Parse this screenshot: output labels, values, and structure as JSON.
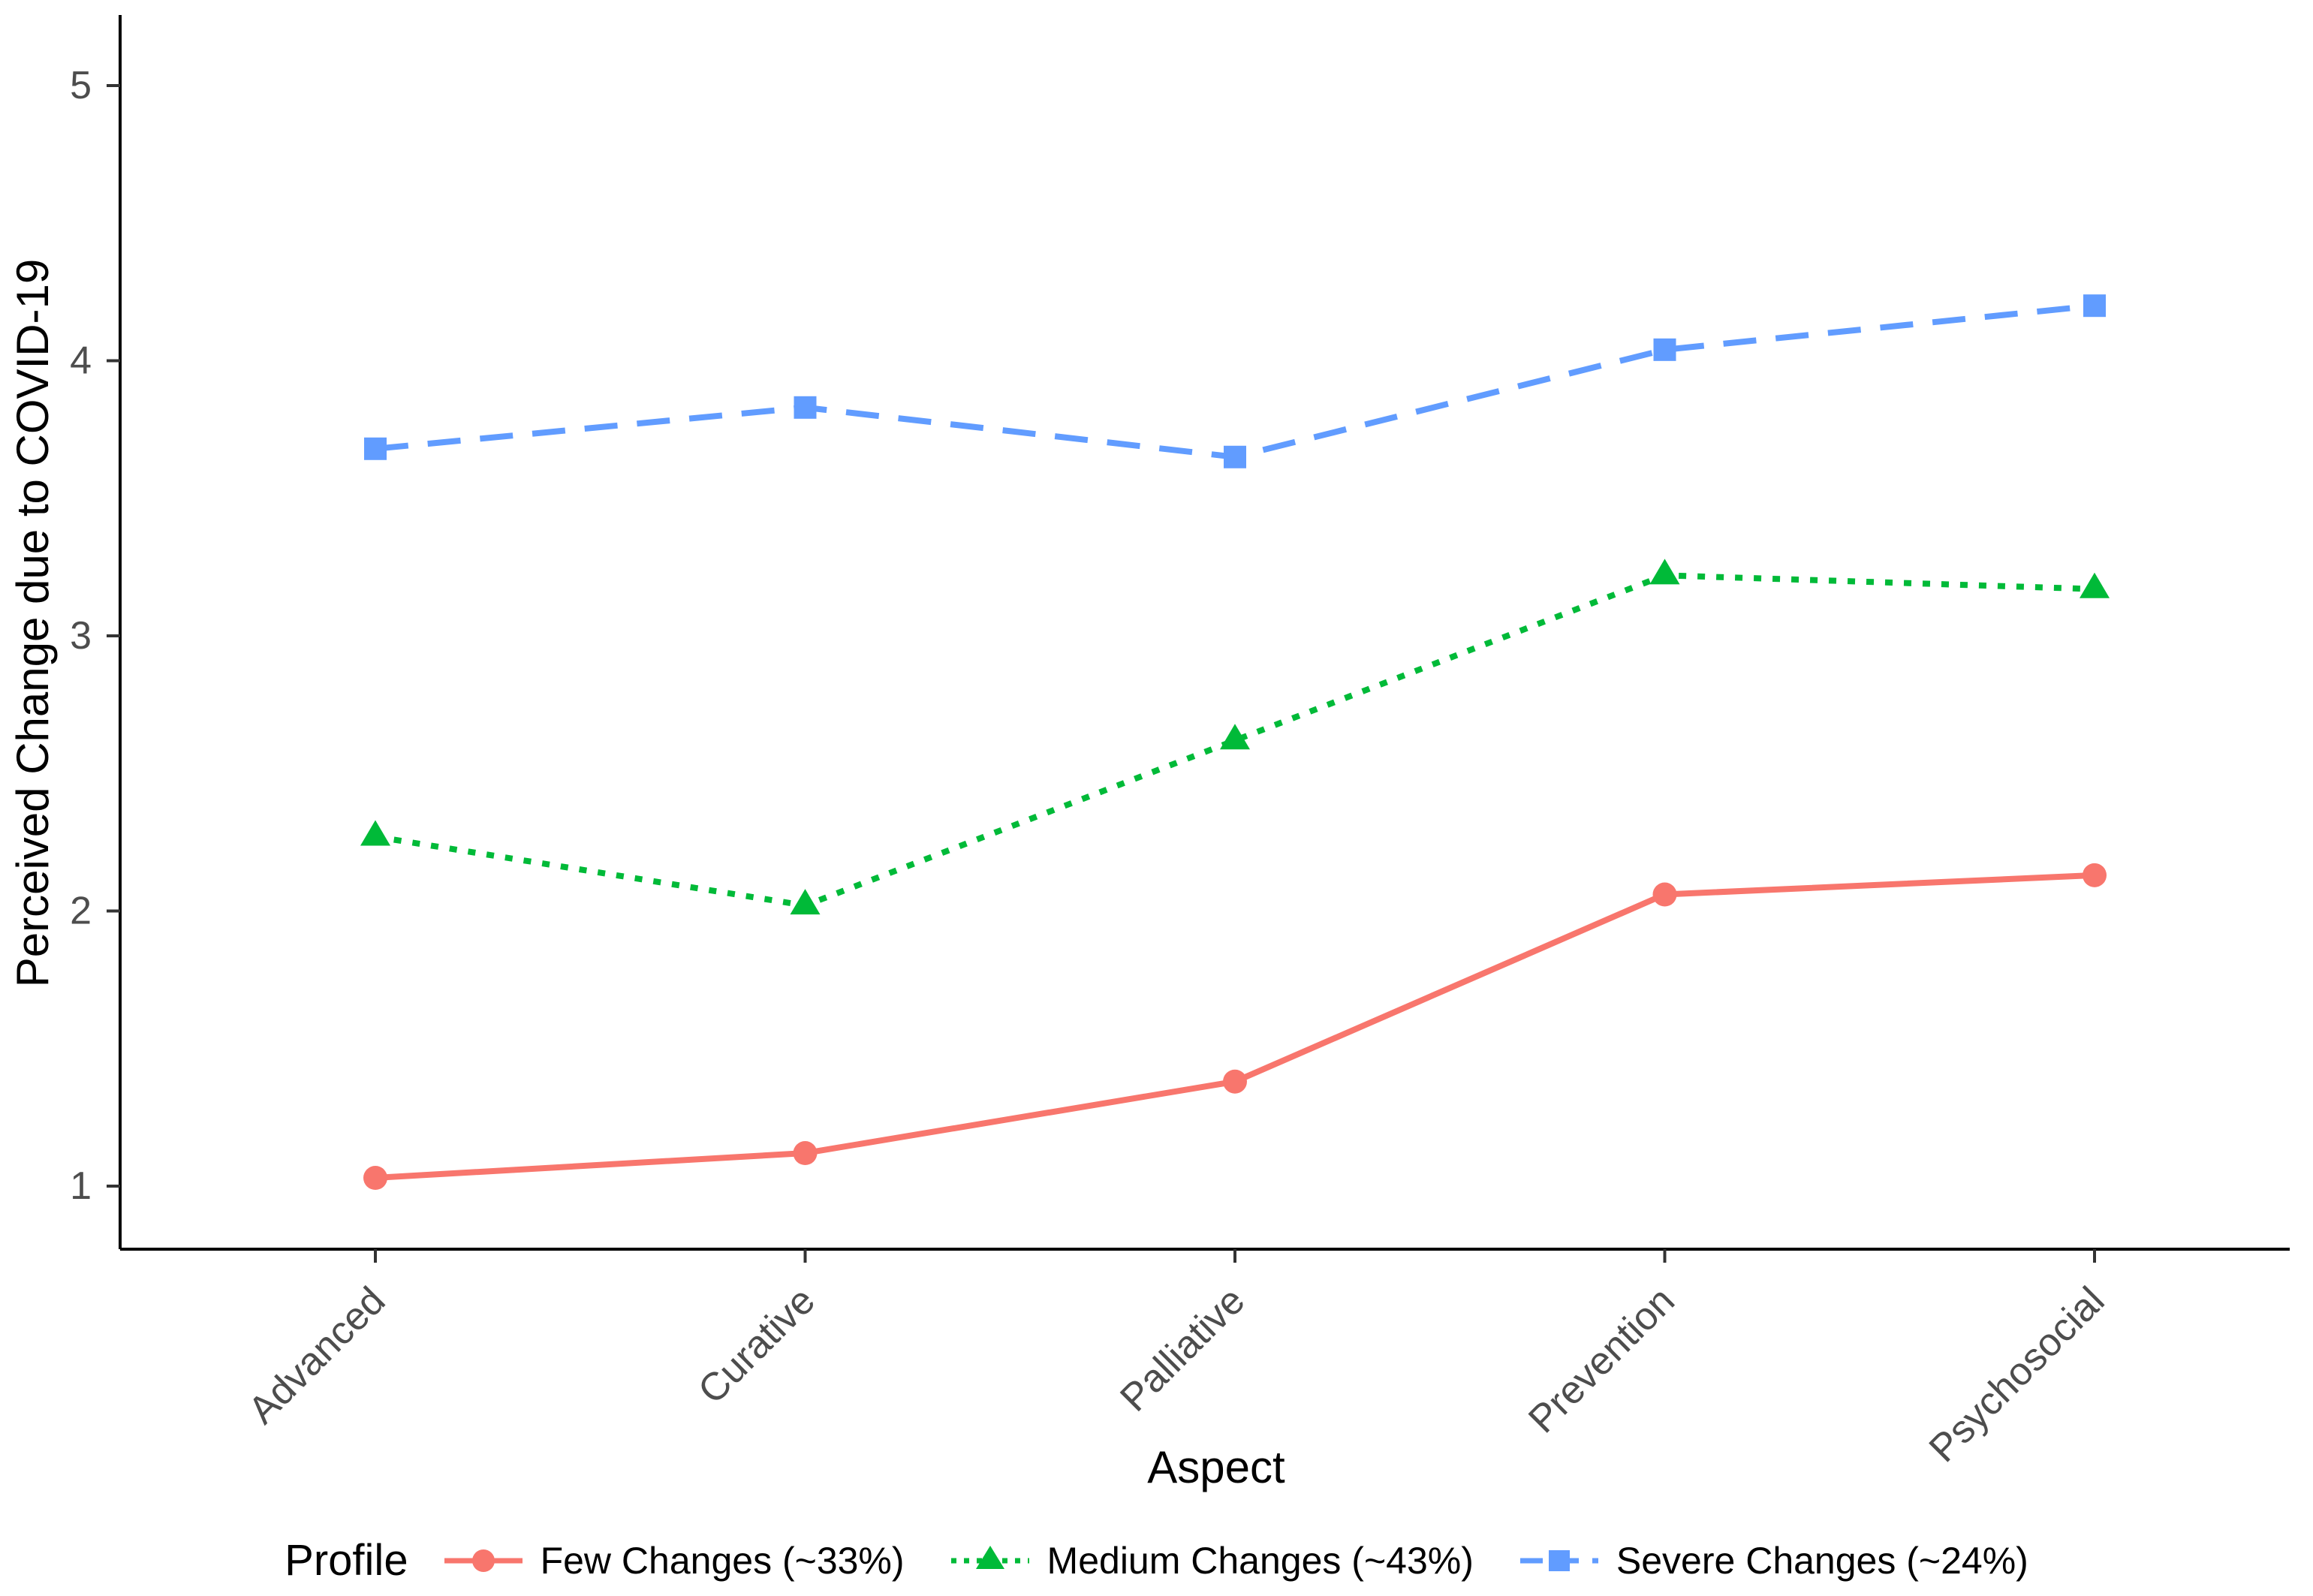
{
  "chart_data": {
    "type": "line",
    "title": "",
    "xlabel": "Aspect",
    "ylabel": "Perceived Change due to COVID-19",
    "categories": [
      "Advanced",
      "Curative",
      "Palliative",
      "Prevention",
      "Psychosocial"
    ],
    "yticks": [
      1,
      2,
      3,
      4,
      5
    ],
    "ylim": [
      0.77,
      5.26
    ],
    "grid": false,
    "legend": {
      "title": "Profile",
      "position": "bottom"
    },
    "series": [
      {
        "name": "Few Changes (~33%)",
        "color": "#F8766D",
        "linestyle": "solid",
        "marker": "circle",
        "values": [
          1.03,
          1.12,
          1.38,
          2.06,
          2.13
        ]
      },
      {
        "name": "Medium Changes (~43%)",
        "color": "#00BA38",
        "linestyle": "dotted",
        "marker": "triangle",
        "values": [
          2.27,
          2.02,
          2.62,
          3.22,
          3.17
        ]
      },
      {
        "name": "Severe Changes (~24%)",
        "color": "#619CFF",
        "linestyle": "dashed",
        "marker": "square",
        "values": [
          3.68,
          3.83,
          3.65,
          4.04,
          4.2
        ]
      }
    ],
    "axis_color": "#000000",
    "tick_label_color": "#4D4D4D"
  }
}
